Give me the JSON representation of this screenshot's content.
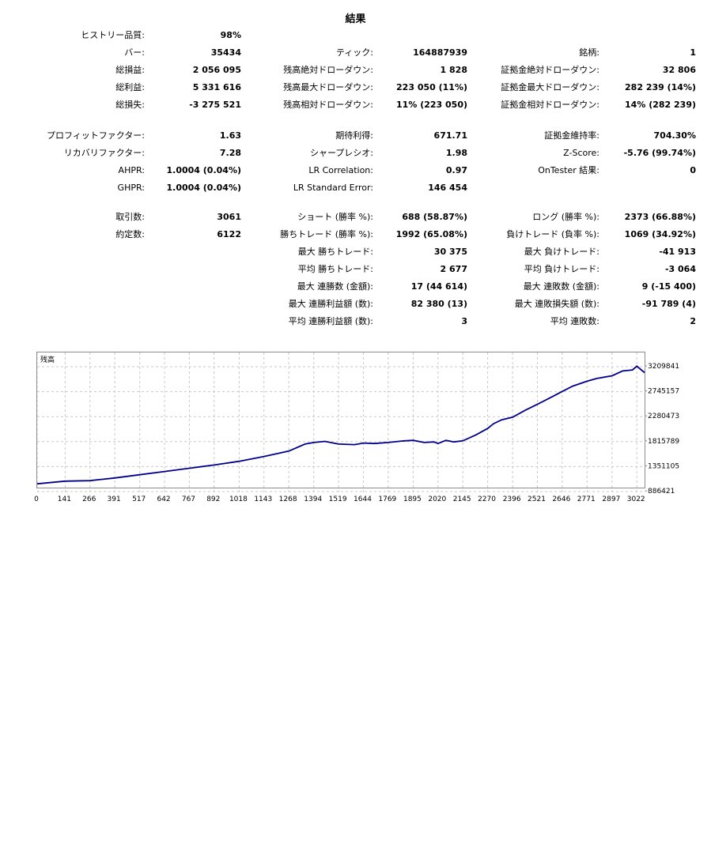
{
  "title": "結果",
  "stats": {
    "col1": [
      {
        "label": "ヒストリー品質:",
        "value": "98%"
      },
      {
        "label": "バー:",
        "value": "35434"
      },
      {
        "label": "総損益:",
        "value": "2 056 095"
      },
      {
        "label": "総利益:",
        "value": "5 331 616"
      },
      {
        "label": "総損失:",
        "value": "-3 275 521"
      },
      {
        "label": "プロフィットファクター:",
        "value": "1.63"
      },
      {
        "label": "リカバリファクター:",
        "value": "7.28"
      },
      {
        "label": "AHPR:",
        "value": "1.0004 (0.04%)"
      },
      {
        "label": "GHPR:",
        "value": "1.0004 (0.04%)"
      },
      {
        "label": "取引数:",
        "value": "3061"
      },
      {
        "label": "約定数:",
        "value": "6122"
      }
    ],
    "col2": [
      {
        "label": "ティック:",
        "value": "164887939"
      },
      {
        "label": "残高絶対ドローダウン:",
        "value": "1 828"
      },
      {
        "label": "残高最大ドローダウン:",
        "value": "223 050 (11%)"
      },
      {
        "label": "残高相対ドローダウン:",
        "value": "11% (223 050)"
      },
      {
        "label": "期待利得:",
        "value": "671.71"
      },
      {
        "label": "シャープレシオ:",
        "value": "1.98"
      },
      {
        "label": "LR Correlation:",
        "value": "0.97"
      },
      {
        "label": "LR Standard Error:",
        "value": "146 454"
      },
      {
        "label": "ショート (勝率 %):",
        "value": "688 (58.87%)"
      },
      {
        "label": "勝ちトレード (勝率 %):",
        "value": "1992 (65.08%)"
      },
      {
        "label": "最大 勝ちトレード:",
        "value": "30 375"
      },
      {
        "label": "平均 勝ちトレード:",
        "value": "2 677"
      },
      {
        "label": "最大 連勝数 (金額):",
        "value": "17 (44 614)"
      },
      {
        "label": "最大 連勝利益額 (数):",
        "value": "82 380 (13)"
      },
      {
        "label": "平均 連勝利益額 (数):",
        "value": "3"
      }
    ],
    "col3": [
      {
        "label": "銘柄:",
        "value": "1"
      },
      {
        "label": "証拠金絶対ドローダウン:",
        "value": "32 806"
      },
      {
        "label": "証拠金最大ドローダウン:",
        "value": "282 239 (14%)"
      },
      {
        "label": "証拠金相対ドローダウン:",
        "value": "14% (282 239)"
      },
      {
        "label": "証拠金維持率:",
        "value": "704.30%"
      },
      {
        "label": "Z-Score:",
        "value": "-5.76 (99.74%)"
      },
      {
        "label": "OnTester 結果:",
        "value": "0"
      },
      {
        "label": "ロング (勝率 %):",
        "value": "2373 (66.88%)"
      },
      {
        "label": "負けトレード (負率 %):",
        "value": "1069 (34.92%)"
      },
      {
        "label": "最大 負けトレード:",
        "value": "-41 913"
      },
      {
        "label": "平均 負けトレード:",
        "value": "-3 064"
      },
      {
        "label": "最大 連敗数 (金額):",
        "value": "9 (-15 400)"
      },
      {
        "label": "最大 連敗損失額 (数):",
        "value": "-91 789 (4)"
      },
      {
        "label": "平均 連敗数:",
        "value": "2"
      }
    ]
  },
  "chart_data": {
    "type": "line",
    "title": "残高",
    "series_color": "#00008b",
    "grid": true,
    "grid_style": "dashed",
    "y_axis_position": "right",
    "ylim": [
      886421,
      3209841
    ],
    "y_ticks": [
      "3209841",
      "2745157",
      "2280473",
      "1815789",
      "1351105",
      "886421"
    ],
    "x_ticks": [
      "0",
      "141",
      "266",
      "391",
      "517",
      "642",
      "767",
      "892",
      "1018",
      "1143",
      "1268",
      "1394",
      "1519",
      "1644",
      "1769",
      "1895",
      "2020",
      "2145",
      "2270",
      "2396",
      "2521",
      "2646",
      "2771",
      "2897",
      "3022"
    ],
    "x": [
      0,
      141,
      266,
      391,
      517,
      642,
      767,
      892,
      1018,
      1143,
      1268,
      1350,
      1394,
      1450,
      1519,
      1600,
      1644,
      1700,
      1769,
      1850,
      1895,
      1950,
      2000,
      2020,
      2060,
      2100,
      2145,
      2210,
      2270,
      2300,
      2340,
      2396,
      2460,
      2521,
      2600,
      2646,
      2700,
      2771,
      2820,
      2897,
      2950,
      3000,
      3022,
      3061
    ],
    "y": [
      1030000,
      1080000,
      1090000,
      1140000,
      1200000,
      1260000,
      1320000,
      1380000,
      1450000,
      1540000,
      1640000,
      1770000,
      1800000,
      1820000,
      1770000,
      1760000,
      1790000,
      1780000,
      1800000,
      1830000,
      1840000,
      1800000,
      1810000,
      1780000,
      1840000,
      1810000,
      1830000,
      1940000,
      2060000,
      2150000,
      2220000,
      2270000,
      2400000,
      2510000,
      2660000,
      2750000,
      2850000,
      2940000,
      2990000,
      3040000,
      3130000,
      3150000,
      3220000,
      3100000
    ]
  }
}
